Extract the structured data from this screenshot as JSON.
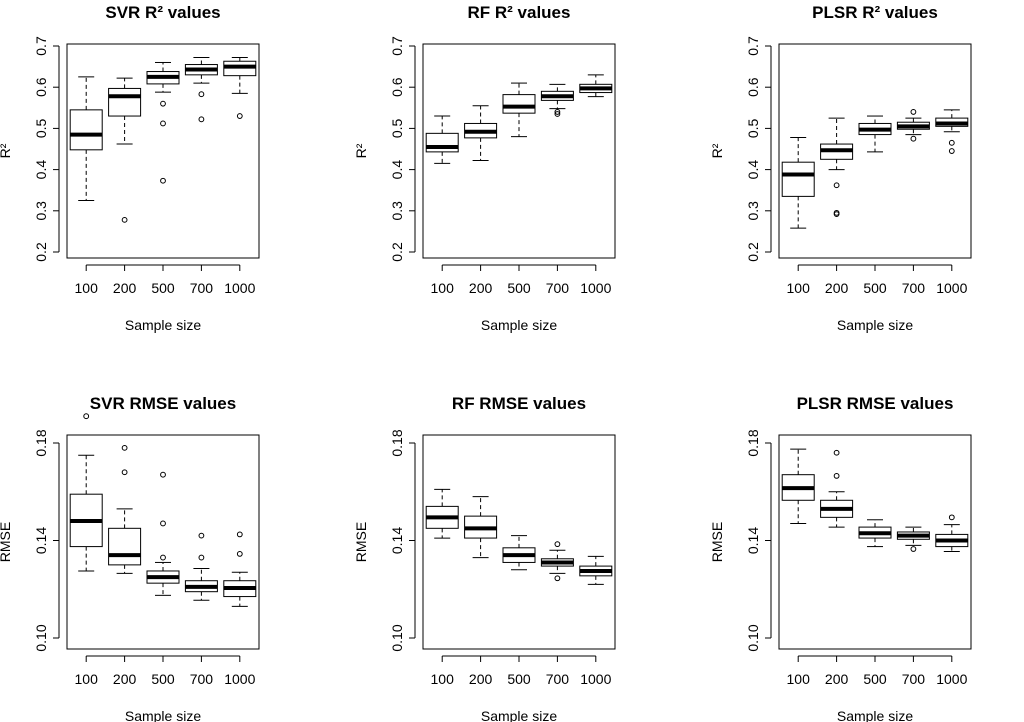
{
  "chart_data": [
    {
      "type": "boxplot",
      "title": "SVR R² values",
      "xlabel": "Sample size",
      "ylabel": "R²",
      "categories": [
        "100",
        "200",
        "500",
        "700",
        "1000"
      ],
      "ylim": [
        0.2,
        0.7
      ],
      "yticks": [
        0.2,
        0.3,
        0.4,
        0.5,
        0.6,
        0.7
      ],
      "ytick_labels": [
        "0.2",
        "0.3",
        "0.4",
        "0.5",
        "0.6",
        "0.7"
      ],
      "boxes": [
        {
          "low": 0.325,
          "q1": 0.448,
          "median": 0.485,
          "q3": 0.545,
          "high": 0.625,
          "outliers": []
        },
        {
          "low": 0.462,
          "q1": 0.53,
          "median": 0.578,
          "q3": 0.597,
          "high": 0.622,
          "outliers": [
            0.278
          ]
        },
        {
          "low": 0.588,
          "q1": 0.608,
          "median": 0.625,
          "q3": 0.638,
          "high": 0.66,
          "outliers": [
            0.56,
            0.512,
            0.373
          ]
        },
        {
          "low": 0.61,
          "q1": 0.63,
          "median": 0.643,
          "q3": 0.655,
          "high": 0.672,
          "outliers": [
            0.583,
            0.522
          ]
        },
        {
          "low": 0.585,
          "q1": 0.628,
          "median": 0.65,
          "q3": 0.663,
          "high": 0.672,
          "outliers": [
            0.53
          ]
        }
      ]
    },
    {
      "type": "boxplot",
      "title": "RF R² values",
      "xlabel": "Sample size",
      "ylabel": "R²",
      "categories": [
        "100",
        "200",
        "500",
        "700",
        "1000"
      ],
      "ylim": [
        0.2,
        0.7
      ],
      "yticks": [
        0.2,
        0.3,
        0.4,
        0.5,
        0.6,
        0.7
      ],
      "ytick_labels": [
        "0.2",
        "0.3",
        "0.4",
        "0.5",
        "0.6",
        "0.7"
      ],
      "boxes": [
        {
          "low": 0.415,
          "q1": 0.443,
          "median": 0.455,
          "q3": 0.488,
          "high": 0.53,
          "outliers": []
        },
        {
          "low": 0.422,
          "q1": 0.477,
          "median": 0.492,
          "q3": 0.512,
          "high": 0.555,
          "outliers": []
        },
        {
          "low": 0.48,
          "q1": 0.537,
          "median": 0.553,
          "q3": 0.582,
          "high": 0.61,
          "outliers": []
        },
        {
          "low": 0.548,
          "q1": 0.568,
          "median": 0.578,
          "q3": 0.59,
          "high": 0.607,
          "outliers": [
            0.54,
            0.535
          ]
        },
        {
          "low": 0.577,
          "q1": 0.587,
          "median": 0.597,
          "q3": 0.607,
          "high": 0.63,
          "outliers": []
        }
      ]
    },
    {
      "type": "boxplot",
      "title": "PLSR R² values",
      "xlabel": "Sample size",
      "ylabel": "R²",
      "categories": [
        "100",
        "200",
        "500",
        "700",
        "1000"
      ],
      "ylim": [
        0.2,
        0.7
      ],
      "yticks": [
        0.2,
        0.3,
        0.4,
        0.5,
        0.6,
        0.7
      ],
      "ytick_labels": [
        "0.2",
        "0.3",
        "0.4",
        "0.5",
        "0.6",
        "0.7"
      ],
      "boxes": [
        {
          "low": 0.258,
          "q1": 0.335,
          "median": 0.388,
          "q3": 0.418,
          "high": 0.478,
          "outliers": []
        },
        {
          "low": 0.4,
          "q1": 0.425,
          "median": 0.447,
          "q3": 0.462,
          "high": 0.525,
          "outliers": [
            0.362,
            0.295,
            0.292
          ]
        },
        {
          "low": 0.443,
          "q1": 0.485,
          "median": 0.497,
          "q3": 0.512,
          "high": 0.53,
          "outliers": []
        },
        {
          "low": 0.485,
          "q1": 0.498,
          "median": 0.505,
          "q3": 0.515,
          "high": 0.525,
          "outliers": [
            0.54,
            0.475
          ]
        },
        {
          "low": 0.492,
          "q1": 0.505,
          "median": 0.512,
          "q3": 0.525,
          "high": 0.545,
          "outliers": [
            0.465,
            0.445
          ]
        }
      ]
    },
    {
      "type": "boxplot",
      "title": "SVR RMSE values",
      "xlabel": "Sample size",
      "ylabel": "RMSE",
      "categories": [
        "100",
        "200",
        "500",
        "700",
        "1000"
      ],
      "ylim": [
        0.1,
        0.18
      ],
      "yticks": [
        0.1,
        0.14,
        0.18
      ],
      "ytick_labels": [
        "0.10",
        "0.14",
        "0.18"
      ],
      "boxes": [
        {
          "low": 0.1275,
          "q1": 0.1375,
          "median": 0.148,
          "q3": 0.159,
          "high": 0.175,
          "outliers": [
            0.191
          ]
        },
        {
          "low": 0.1265,
          "q1": 0.13,
          "median": 0.134,
          "q3": 0.145,
          "high": 0.153,
          "outliers": [
            0.178,
            0.168
          ]
        },
        {
          "low": 0.1175,
          "q1": 0.1225,
          "median": 0.125,
          "q3": 0.1275,
          "high": 0.131,
          "outliers": [
            0.167,
            0.147,
            0.133
          ]
        },
        {
          "low": 0.1155,
          "q1": 0.119,
          "median": 0.121,
          "q3": 0.1235,
          "high": 0.1285,
          "outliers": [
            0.142,
            0.133
          ]
        },
        {
          "low": 0.113,
          "q1": 0.117,
          "median": 0.1205,
          "q3": 0.1235,
          "high": 0.127,
          "outliers": [
            0.1425,
            0.1345
          ]
        }
      ]
    },
    {
      "type": "boxplot",
      "title": "RF RMSE values",
      "xlabel": "Sample size",
      "ylabel": "RMSE",
      "categories": [
        "100",
        "200",
        "500",
        "700",
        "1000"
      ],
      "ylim": [
        0.1,
        0.18
      ],
      "yticks": [
        0.1,
        0.14,
        0.18
      ],
      "ytick_labels": [
        "0.10",
        "0.14",
        "0.18"
      ],
      "boxes": [
        {
          "low": 0.141,
          "q1": 0.145,
          "median": 0.1495,
          "q3": 0.154,
          "high": 0.161,
          "outliers": []
        },
        {
          "low": 0.133,
          "q1": 0.141,
          "median": 0.145,
          "q3": 0.15,
          "high": 0.158,
          "outliers": []
        },
        {
          "low": 0.128,
          "q1": 0.131,
          "median": 0.134,
          "q3": 0.137,
          "high": 0.142,
          "outliers": []
        },
        {
          "low": 0.1265,
          "q1": 0.1295,
          "median": 0.131,
          "q3": 0.1325,
          "high": 0.136,
          "outliers": [
            0.1385,
            0.1245
          ]
        },
        {
          "low": 0.122,
          "q1": 0.1255,
          "median": 0.1275,
          "q3": 0.1295,
          "high": 0.1335,
          "outliers": []
        }
      ]
    },
    {
      "type": "boxplot",
      "title": "PLSR RMSE values",
      "xlabel": "Sample size",
      "ylabel": "RMSE",
      "categories": [
        "100",
        "200",
        "500",
        "700",
        "1000"
      ],
      "ylim": [
        0.1,
        0.18
      ],
      "yticks": [
        0.1,
        0.14,
        0.18
      ],
      "ytick_labels": [
        "0.10",
        "0.14",
        "0.18"
      ],
      "boxes": [
        {
          "low": 0.147,
          "q1": 0.1565,
          "median": 0.1615,
          "q3": 0.167,
          "high": 0.1775,
          "outliers": []
        },
        {
          "low": 0.1455,
          "q1": 0.1495,
          "median": 0.153,
          "q3": 0.1565,
          "high": 0.16,
          "outliers": [
            0.176,
            0.1665
          ]
        },
        {
          "low": 0.1375,
          "q1": 0.141,
          "median": 0.143,
          "q3": 0.1455,
          "high": 0.1485,
          "outliers": []
        },
        {
          "low": 0.138,
          "q1": 0.1405,
          "median": 0.142,
          "q3": 0.1435,
          "high": 0.1455,
          "outliers": [
            0.1365
          ]
        },
        {
          "low": 0.1355,
          "q1": 0.1375,
          "median": 0.14,
          "q3": 0.1425,
          "high": 0.1465,
          "outliers": [
            0.1495
          ]
        }
      ]
    }
  ]
}
